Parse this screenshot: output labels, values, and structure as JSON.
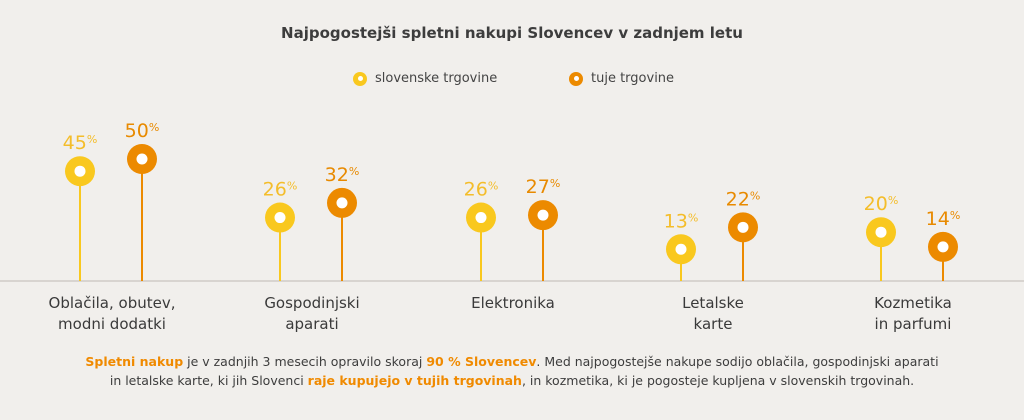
{
  "colors": {
    "domestic": "#f9c81e",
    "foreign": "#ec8a00",
    "pct_domestic_label": "#f4bd2a",
    "pct_foreign_label": "#e88a00",
    "axis": "#c9c4bf",
    "accent": "#f08a00"
  },
  "chart_data": {
    "type": "lollipop",
    "title": "Najpogostejši spletni nakupi Slovencev v zadnjem letu",
    "categories": [
      [
        "Oblačila, obutev,",
        "modni dodatki"
      ],
      [
        "Gospodinjski",
        "aparati"
      ],
      [
        "Elektronika"
      ],
      [
        "Letalske",
        "karte"
      ],
      [
        "Kozmetika",
        "in parfumi"
      ]
    ],
    "series": [
      {
        "name": "slovenske trgovine",
        "values": [
          45,
          26,
          26,
          13,
          20
        ]
      },
      {
        "name": "tuje trgovine",
        "values": [
          50,
          32,
          27,
          22,
          14
        ]
      }
    ],
    "value_suffix": "%",
    "grid": false,
    "legend_position": "top-center"
  },
  "footer": {
    "segments": [
      {
        "text": "Spletni nakup",
        "highlight": true
      },
      {
        "text": " je v zadnjih 3 mesecih opravilo skoraj ",
        "highlight": false
      },
      {
        "text": "90 % Slovencev",
        "highlight": true
      },
      {
        "text": ". Med najpogostejše nakupe sodijo oblačila, gospodinjski aparati",
        "highlight": false
      },
      {
        "break": true
      },
      {
        "text": "in letalske karte, ki jih Slovenci ",
        "highlight": false
      },
      {
        "text": "raje kupujejo v tujih trgovinah",
        "highlight": true
      },
      {
        "text": ", in kozmetika, ki je pogosteje kupljena v slovenskih trgovinah.",
        "highlight": false
      }
    ]
  }
}
